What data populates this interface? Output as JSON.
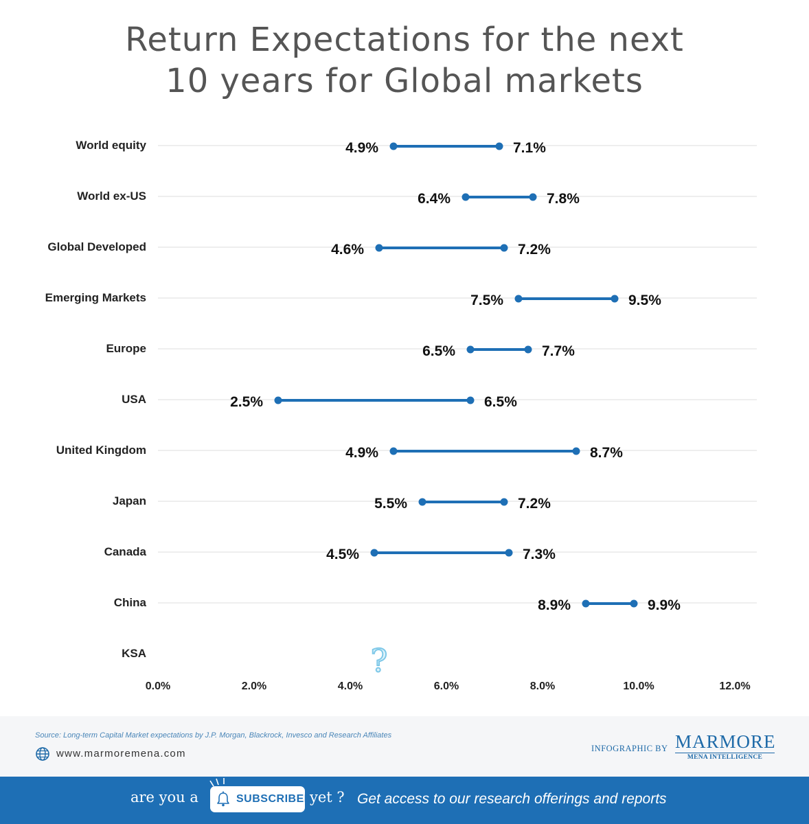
{
  "chart_data": {
    "type": "dumbbell",
    "title_lines": [
      "Return Expectations for the next",
      "10 years for Global markets"
    ],
    "categories": [
      "World equity",
      "World ex-US",
      "Global Developed",
      "Emerging Markets",
      "Europe",
      "USA",
      "United Kingdom",
      "Japan",
      "Canada",
      "China",
      "KSA"
    ],
    "low": [
      4.9,
      6.4,
      4.6,
      7.5,
      6.5,
      2.5,
      4.9,
      5.5,
      4.5,
      8.9,
      null
    ],
    "high": [
      7.1,
      7.8,
      7.2,
      9.5,
      7.7,
      6.5,
      8.7,
      7.2,
      7.3,
      9.9,
      null
    ],
    "low_labels": [
      "4.9%",
      "6.4%",
      "4.6%",
      "7.5%",
      "6.5%",
      "2.5%",
      "4.9%",
      "5.5%",
      "4.5%",
      "8.9%",
      ""
    ],
    "high_labels": [
      "7.1%",
      "7.8%",
      "7.2%",
      "9.5%",
      "7.7%",
      "6.5%",
      "8.7%",
      "7.2%",
      "7.3%",
      "9.9%",
      ""
    ],
    "unknown_marker": {
      "category": "KSA",
      "symbol": "?"
    },
    "x_ticks": [
      "0.0%",
      "2.0%",
      "4.0%",
      "6.0%",
      "8.0%",
      "10.0%",
      "12.0%"
    ],
    "xlim": [
      0,
      12
    ],
    "grid": true,
    "colors": {
      "series": "#1e6fb5",
      "grid": "#eeeeee",
      "unknown": "#7ec8e8"
    }
  },
  "footer": {
    "source": "Source: Long-term Capital Market expectations by J.P. Morgan, Blackrock, Invesco and Research Affiliates",
    "website": "www.marmoremena.com",
    "infographic_by": "INFOGRAPHIC BY",
    "brand_name": "MARMORE",
    "brand_sub": "MENA INTELLIGENCE"
  },
  "banner": {
    "pre": "are you a",
    "badge": "SUBSCRIBER",
    "post": "yet ?",
    "tagline": "Get access to our research offerings and reports"
  },
  "icons": {
    "globe": "globe-icon",
    "bell": "bell-icon",
    "question": "question-mark-icon"
  }
}
